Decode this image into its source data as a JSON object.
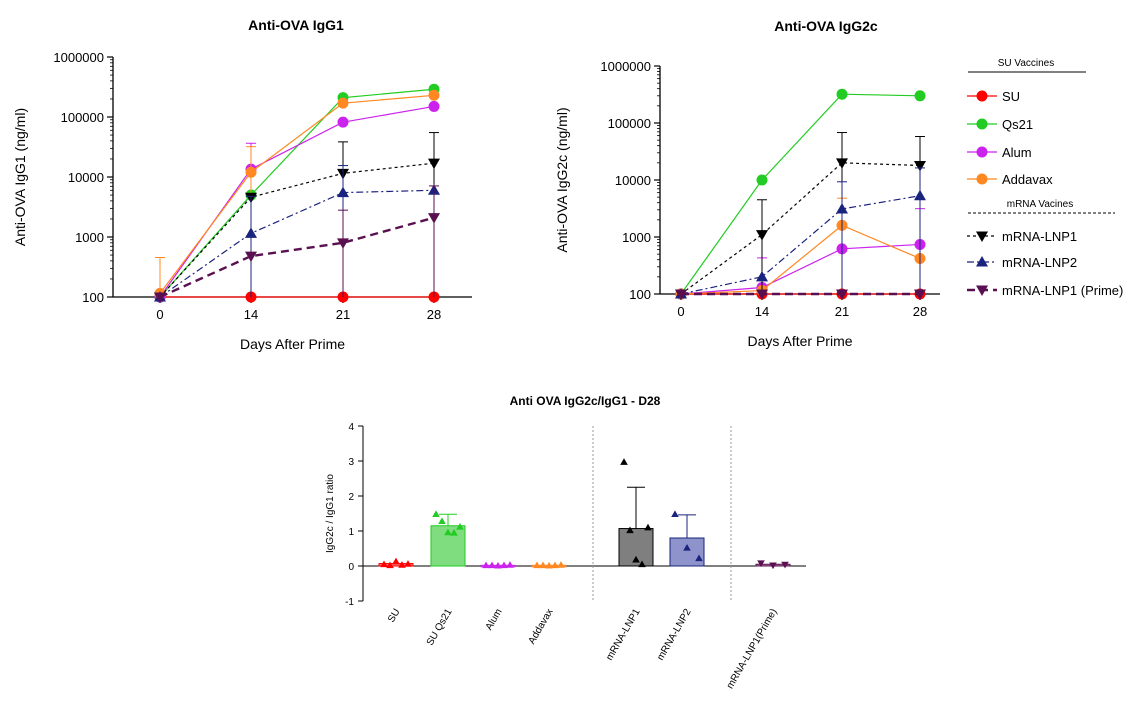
{
  "chart_data": [
    {
      "type": "line",
      "title": "Anti-OVA  IgG1",
      "xlabel": "Days After Prime",
      "ylabel": "Anti-OVA IgG1 (ng/ml)",
      "yscale": "log",
      "ylim": [
        100,
        1000000
      ],
      "yticks": [
        "100",
        "1000",
        "10000",
        "100000",
        "1000000"
      ],
      "x": [
        0,
        14,
        21,
        28
      ],
      "xticks": [
        "0",
        "14",
        "21",
        "28"
      ],
      "series": [
        {
          "name": "SU",
          "color": "#ff0000",
          "marker": "circle",
          "dash": "solid",
          "values": [
            100,
            100,
            100,
            100
          ],
          "err": [
            0,
            0,
            0,
            0
          ]
        },
        {
          "name": "Qs21",
          "color": "#22cc22",
          "marker": "circle",
          "dash": "solid",
          "values": [
            100,
            5000,
            210000,
            290000
          ],
          "err": [
            0,
            0,
            0,
            0
          ]
        },
        {
          "name": "Alum",
          "color": "#cc22ee",
          "marker": "circle",
          "dash": "solid",
          "values": [
            100,
            13500,
            82000,
            150000
          ],
          "err": [
            0,
            23000,
            0,
            0
          ]
        },
        {
          "name": "Addavax",
          "color": "#ff8822",
          "marker": "circle",
          "dash": "solid",
          "values": [
            115,
            12000,
            170000,
            230000
          ],
          "err": [
            340,
            20000,
            0,
            0
          ]
        },
        {
          "name": "mRNA-LNP1",
          "color": "#000000",
          "marker": "triangle-down",
          "dash": "dotted",
          "values": [
            100,
            4600,
            11500,
            17000
          ],
          "err": [
            0,
            0,
            27000,
            38000
          ]
        },
        {
          "name": "mRNA-LNP2",
          "color": "#1a237e",
          "marker": "triangle-up",
          "dash": "dashdot",
          "values": [
            100,
            1150,
            5500,
            6000
          ],
          "err": [
            0,
            3600,
            10000,
            0
          ]
        },
        {
          "name": "mRNA-LNP1 (Prime)",
          "color": "#5a1050",
          "marker": "triangle-down",
          "dash": "dashed",
          "values": [
            100,
            480,
            800,
            2100
          ],
          "err": [
            0,
            0,
            2000,
            5000
          ]
        }
      ]
    },
    {
      "type": "line",
      "title": "Anti-OVA  IgG2c",
      "xlabel": "Days After Prime",
      "ylabel": "Anti-OVA IgG2c (ng/ml)",
      "yscale": "log",
      "ylim": [
        100,
        1000000
      ],
      "yticks": [
        "100",
        "1000",
        "10000",
        "100000",
        "1000000"
      ],
      "x": [
        0,
        14,
        21,
        28
      ],
      "xticks": [
        "0",
        "14",
        "21",
        "28"
      ],
      "series": [
        {
          "name": "SU",
          "color": "#ff0000",
          "marker": "circle",
          "dash": "solid",
          "values": [
            100,
            100,
            100,
            100
          ],
          "err": [
            0,
            0,
            0,
            0
          ]
        },
        {
          "name": "Qs21",
          "color": "#22cc22",
          "marker": "circle",
          "dash": "solid",
          "values": [
            100,
            10000,
            320000,
            300000
          ],
          "err": [
            0,
            0,
            0,
            0
          ]
        },
        {
          "name": "Alum",
          "color": "#cc22ee",
          "marker": "circle",
          "dash": "solid",
          "values": [
            100,
            130,
            620,
            740
          ],
          "err": [
            0,
            300,
            0,
            2400
          ]
        },
        {
          "name": "Addavax",
          "color": "#ff8822",
          "marker": "circle",
          "dash": "solid",
          "values": [
            100,
            115,
            1600,
            420
          ],
          "err": [
            0,
            0,
            3200,
            0
          ]
        },
        {
          "name": "mRNA-LNP1",
          "color": "#000000",
          "marker": "triangle-down",
          "dash": "dotted",
          "values": [
            100,
            1100,
            20000,
            18000
          ],
          "err": [
            0,
            3400,
            48000,
            40000
          ]
        },
        {
          "name": "mRNA-LNP2",
          "color": "#1a237e",
          "marker": "triangle-up",
          "dash": "dashdot",
          "values": [
            100,
            200,
            3100,
            5300
          ],
          "err": [
            0,
            0,
            6200,
            11000
          ]
        },
        {
          "name": "mRNA-LNP1 (Prime)",
          "color": "#5a1050",
          "marker": "triangle-down",
          "dash": "dashed",
          "values": [
            100,
            100,
            100,
            100
          ],
          "err": [
            0,
            0,
            0,
            0
          ]
        }
      ]
    },
    {
      "type": "bar",
      "title": "Anti OVA  IgG2c/IgG1 - D28",
      "ylabel": "IgG2c / IgG1 ratio",
      "ylim": [
        -1,
        4
      ],
      "yticks": [
        "-1",
        "0",
        "1",
        "2",
        "3",
        "4"
      ],
      "categories": [
        "SU",
        "SU Qs21",
        "Alum",
        "Addavax",
        "mRNA-LNP1",
        "mRNA-LNP2",
        "mRNA-LNP1(Prime)"
      ],
      "values": [
        0.07,
        1.15,
        0.02,
        0.02,
        1.07,
        0.8,
        0.05
      ],
      "err": [
        0,
        0.33,
        0,
        0,
        1.18,
        0.66,
        0
      ],
      "colors": [
        "#ff0000",
        "#22cc22",
        "#cc22ee",
        "#ff8822",
        "#000000",
        "#1a237e",
        "#5a1050"
      ],
      "fills": [
        "#ff7070",
        "#7fdd7f",
        "#d080e8",
        "#ffb070",
        "#7f7f7f",
        "#8f93cc",
        "#a880a0"
      ],
      "points": [
        [
          0.05,
          0.02,
          0.13,
          0.03,
          0.06
        ],
        [
          1.48,
          1.28,
          0.96,
          0.95,
          1.12
        ],
        [
          0.02,
          0.02,
          0.01,
          0.02,
          0.03
        ],
        [
          0.02,
          0.02,
          0.01,
          0.02,
          0.03
        ],
        [
          2.97,
          1.02,
          0.18,
          0.05,
          1.1
        ],
        [
          1.48,
          0.52,
          0.22
        ],
        [
          0.08,
          0.02,
          0.04
        ]
      ],
      "markers": [
        "triangle-up",
        "triangle-up",
        "triangle-up",
        "triangle-up",
        "triangle-up",
        "triangle-up",
        "triangle-down"
      ]
    }
  ],
  "legend": {
    "su_header": "SU  Vaccines",
    "mrna_header": "mRNA Vacines",
    "items": [
      "SU",
      "Qs21",
      "Alum",
      "Addavax",
      "mRNA-LNP1",
      "mRNA-LNP2",
      "mRNA-LNP1 (Prime)"
    ]
  }
}
